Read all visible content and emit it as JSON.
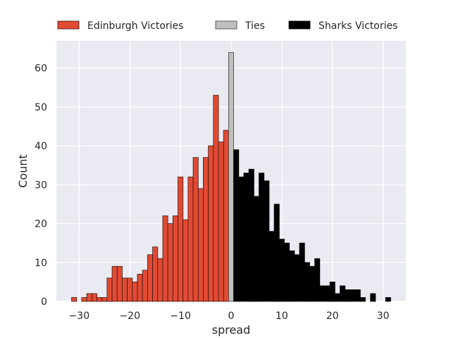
{
  "chart_data": {
    "type": "bar",
    "xlabel": "spread",
    "ylabel": "Count",
    "xlim": [
      -34.5,
      34.5
    ],
    "ylim": [
      0,
      67
    ],
    "xticks": [
      -30,
      -20,
      -10,
      0,
      10,
      20,
      30
    ],
    "xtick_labels": [
      "−30",
      "−20",
      "−10",
      "0",
      "10",
      "20",
      "30"
    ],
    "yticks": [
      0,
      10,
      20,
      30,
      40,
      50,
      60
    ],
    "yticks_labels": [
      "0",
      "10",
      "20",
      "30",
      "40",
      "50",
      "60"
    ],
    "grid": true,
    "legend_position": "top, above plot",
    "series": [
      {
        "name": "Edinburgh Victories",
        "color": "#e24a33",
        "edge_color": "#3a1a12",
        "x": [
          -31,
          -30,
          -29,
          -28,
          -27,
          -26,
          -25,
          -24,
          -23,
          -22,
          -21,
          -20,
          -19,
          -18,
          -17,
          -16,
          -15,
          -14,
          -13,
          -12,
          -11,
          -10,
          -9,
          -8,
          -7,
          -6,
          -5,
          -4,
          -3,
          -2,
          -1
        ],
        "values": [
          1,
          0,
          1,
          2,
          2,
          1,
          1,
          6,
          9,
          9,
          6,
          6,
          5,
          7,
          8,
          12,
          14,
          11,
          22,
          20,
          22,
          32,
          21,
          32,
          37,
          29,
          37,
          40,
          53,
          41,
          44
        ]
      },
      {
        "name": "Ties",
        "color": "#bfbfbf",
        "edge_color": "#3a3a3a",
        "x": [
          0
        ],
        "values": [
          64
        ]
      },
      {
        "name": "Sharks Victories",
        "color": "#000000",
        "edge_color": "#000000",
        "x": [
          1,
          2,
          3,
          4,
          5,
          6,
          7,
          8,
          9,
          10,
          11,
          12,
          13,
          14,
          15,
          16,
          17,
          18,
          19,
          20,
          21,
          22,
          23,
          24,
          25,
          26,
          27,
          28,
          29,
          30,
          31
        ],
        "values": [
          39,
          32,
          33,
          34,
          27,
          33,
          31,
          18,
          25,
          16,
          15,
          13,
          12,
          15,
          10,
          9,
          11,
          4,
          4,
          5,
          2,
          4,
          3,
          3,
          3,
          1,
          0,
          2,
          0,
          0,
          1
        ]
      }
    ]
  }
}
